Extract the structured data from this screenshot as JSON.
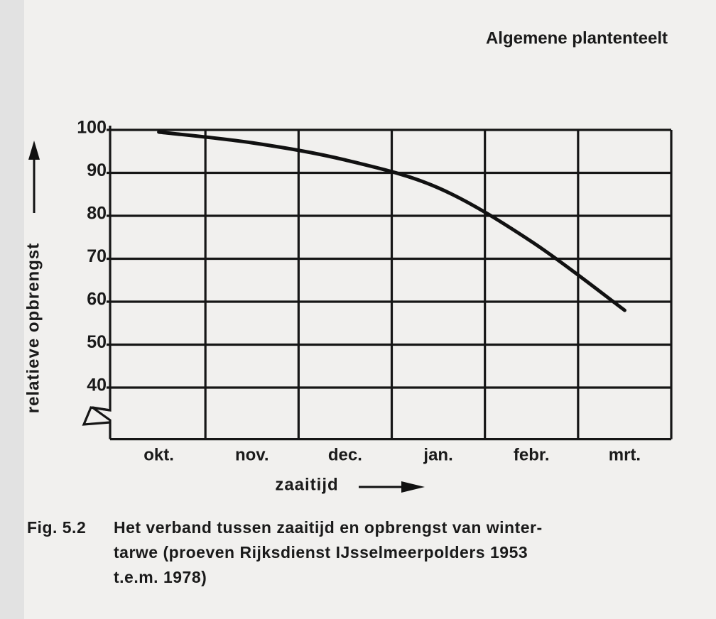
{
  "header": "Algemene plantenteelt",
  "chart_data": {
    "type": "line",
    "ylabel": "relatieve opbrengst",
    "xlabel": "zaaitijd",
    "categories": [
      "okt.",
      "nov.",
      "dec.",
      "jan.",
      "febr.",
      "mrt."
    ],
    "series": [
      {
        "color": "#111111",
        "values": [
          99.5,
          97,
          93,
          86.5,
          74,
          58
        ]
      }
    ],
    "ylim": [
      28,
      100
    ],
    "yticks": [
      40,
      50,
      60,
      70,
      80,
      90,
      100
    ],
    "grid": true
  },
  "caption": {
    "label": "Fig. 5.2",
    "lines": [
      "Het verband tussen zaaitijd en opbrengst van winter-",
      "tarwe (proeven Rijksdienst IJsselmeerpolders 1953",
      "t.e.m. 1978)"
    ]
  }
}
